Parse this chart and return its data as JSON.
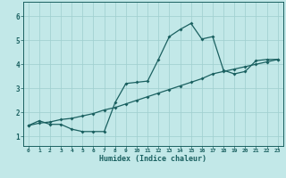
{
  "xlabel": "Humidex (Indice chaleur)",
  "bg_color": "#c2e8e8",
  "grid_color": "#9ecece",
  "line_color": "#1a6060",
  "xlim": [
    -0.5,
    23.5
  ],
  "ylim": [
    0.6,
    6.6
  ],
  "yticks": [
    1,
    2,
    3,
    4,
    5,
    6
  ],
  "xtick_labels": [
    "0",
    "1",
    "2",
    "3",
    "4",
    "5",
    "6",
    "7",
    "8",
    "9",
    "10",
    "11",
    "12",
    "13",
    "14",
    "15",
    "16",
    "17",
    "18",
    "19",
    "20",
    "21",
    "22",
    "23"
  ],
  "curve1_x": [
    0,
    1,
    2,
    3,
    4,
    5,
    6,
    7,
    8,
    9,
    10,
    11,
    12,
    13,
    14,
    15,
    16,
    17,
    18,
    19,
    20,
    21,
    22,
    23
  ],
  "curve1_y": [
    1.45,
    1.65,
    1.5,
    1.5,
    1.3,
    1.2,
    1.2,
    1.2,
    2.4,
    3.2,
    3.25,
    3.3,
    4.2,
    5.15,
    5.45,
    5.7,
    5.05,
    5.15,
    3.75,
    3.6,
    3.7,
    4.15,
    4.2,
    4.2
  ],
  "curve2_x": [
    0,
    1,
    2,
    3,
    4,
    5,
    6,
    7,
    8,
    9,
    10,
    11,
    12,
    13,
    14,
    15,
    16,
    17,
    18,
    19,
    20,
    21,
    22,
    23
  ],
  "curve2_y": [
    1.45,
    1.55,
    1.6,
    1.7,
    1.75,
    1.85,
    1.95,
    2.1,
    2.2,
    2.35,
    2.5,
    2.65,
    2.8,
    2.95,
    3.1,
    3.25,
    3.4,
    3.6,
    3.7,
    3.8,
    3.9,
    4.0,
    4.1,
    4.2
  ]
}
